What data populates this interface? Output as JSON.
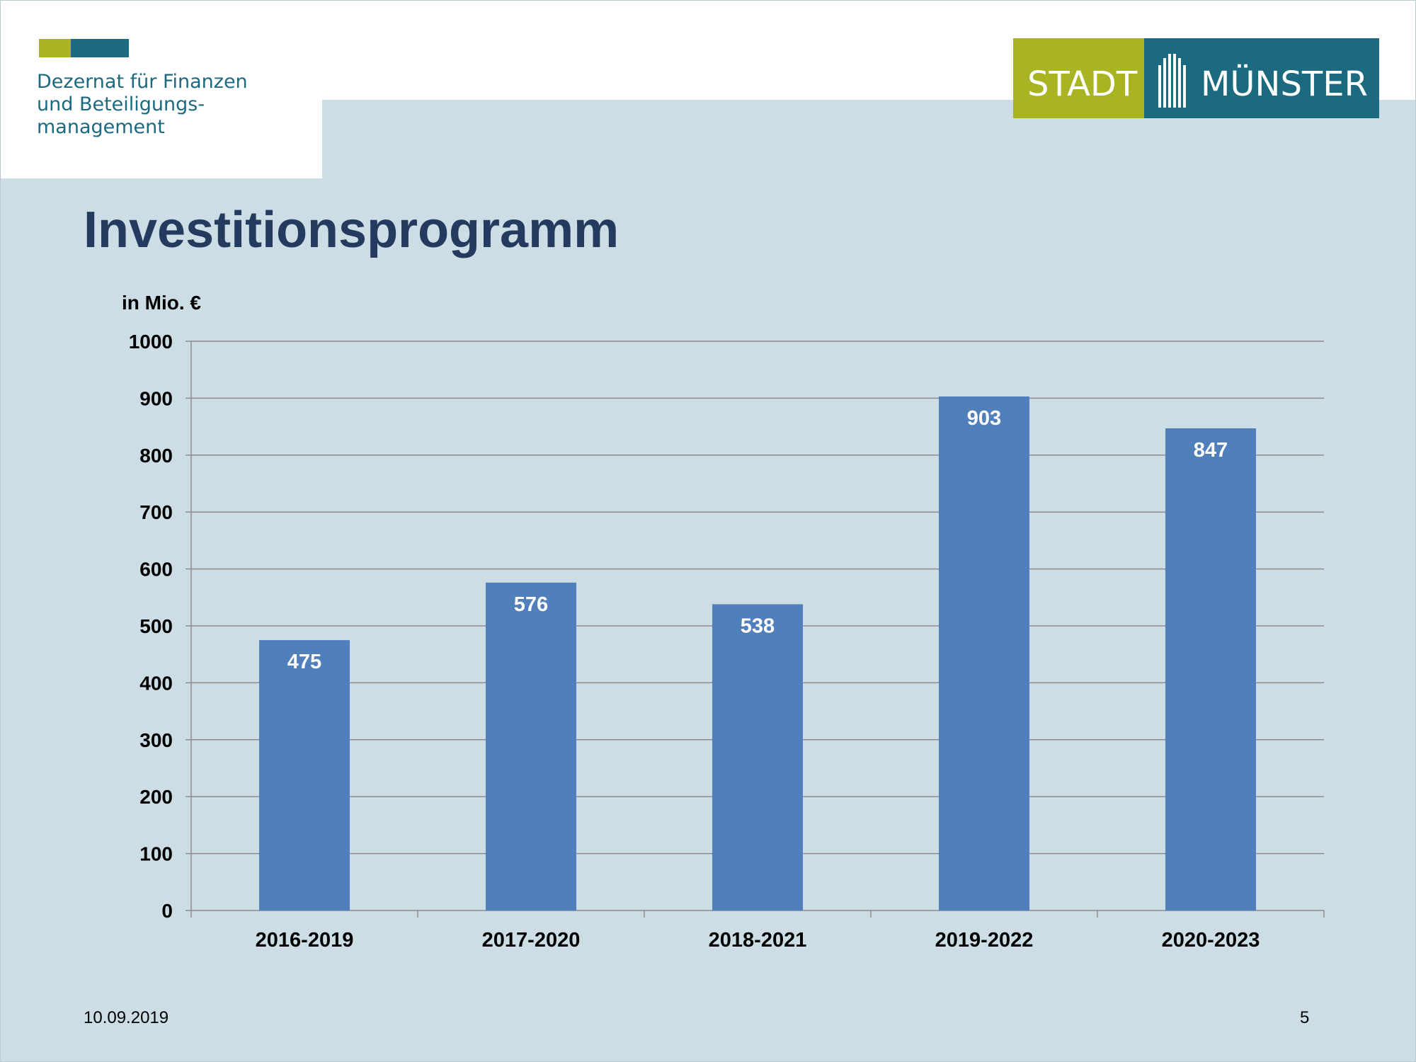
{
  "header": {
    "department_lines": [
      "Dezernat für Finanzen",
      "und Beteiligungs-",
      "management"
    ],
    "brand_left": "STADT",
    "brand_right": "MÜNSTER"
  },
  "slide": {
    "title": "Investitionsprogramm",
    "date": "10.09.2019",
    "page_number": "5"
  },
  "colors": {
    "bar": "#5080bc",
    "title": "#243a5e",
    "brand_green": "#a9b423",
    "brand_teal": "#1b6a80",
    "background": "#ccdde6",
    "gridline": "#8c8c8c"
  },
  "chart_data": {
    "type": "bar",
    "title": "",
    "xlabel": "",
    "ylabel": "in Mio. €",
    "categories": [
      "2016-2019",
      "2017-2020",
      "2018-2021",
      "2019-2022",
      "2020-2023"
    ],
    "values": [
      475,
      576,
      538,
      903,
      847
    ],
    "data_labels": [
      "475",
      "576",
      "538",
      "903",
      "847"
    ],
    "ylim": [
      0,
      1000
    ],
    "y_ticks": [
      0,
      100,
      200,
      300,
      400,
      500,
      600,
      700,
      800,
      900,
      1000
    ],
    "grid": true,
    "legend": "none"
  }
}
